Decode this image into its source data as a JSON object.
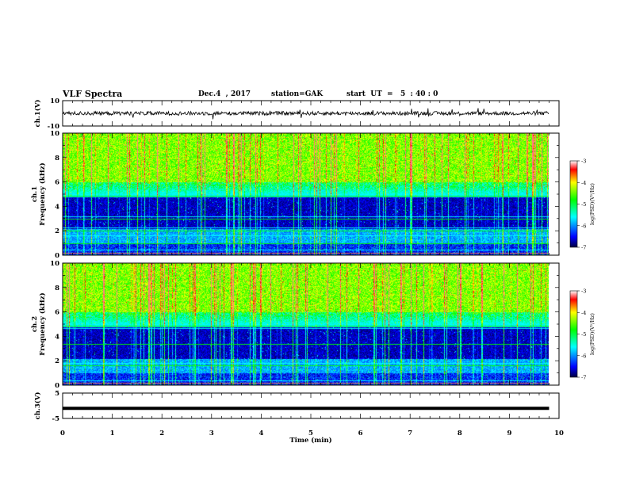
{
  "header": {
    "title": "VLF Spectra",
    "date": "Dec.4  , 2017",
    "station": "station=GAK",
    "start": "start  UT  =   5  : 40 : 0"
  },
  "chart_data": [
    {
      "type": "line",
      "panel": "ch1-waveform",
      "ylabel": "ch.1(V)",
      "ylim": [
        -10,
        10
      ],
      "yticks": [
        "10",
        "-10"
      ],
      "description_series": "noisy waveform around 0 V",
      "xlim": [
        0,
        10
      ]
    },
    {
      "type": "heatmap",
      "panel": "ch1-spectrogram",
      "ylabel": "ch.1\nFrequency  (kHz)",
      "ylim": [
        0,
        10
      ],
      "yticks": [
        "0",
        "2",
        "4",
        "6",
        "8",
        "10"
      ],
      "xlim": [
        0,
        10
      ],
      "data_extent_x": [
        0,
        9.8
      ],
      "colorbar": {
        "label": "log(PSD)(V²/Hz)",
        "range": [
          -7,
          -3
        ],
        "ticks": [
          "-3",
          "-4",
          "-5",
          "-6",
          "-7"
        ]
      },
      "line_features_khz": [
        0.2,
        0.45,
        1.0,
        1.6,
        2.0,
        2.3,
        3.0,
        3.2,
        4.9
      ]
    },
    {
      "type": "heatmap",
      "panel": "ch2-spectrogram",
      "ylabel": "ch.2\nFrequency  (kHz)",
      "ylim": [
        0,
        10
      ],
      "yticks": [
        "0",
        "2",
        "4",
        "6",
        "8",
        "10"
      ],
      "xlim": [
        0,
        10
      ],
      "data_extent_x": [
        0,
        9.8
      ],
      "colorbar": {
        "label": "log(PSD)(V²/Hz)",
        "range": [
          -7,
          -3
        ],
        "ticks": [
          "-3",
          "-4",
          "-5",
          "-6",
          "-7"
        ]
      },
      "line_features_khz": [
        0.2,
        0.4,
        1.6,
        1.8,
        3.4,
        4.7,
        4.9
      ]
    },
    {
      "type": "line",
      "panel": "ch3-waveform",
      "ylabel": "ch.3(V)",
      "ylim": [
        -5,
        5
      ],
      "yticks": [
        "5",
        "-5"
      ],
      "constant_value": -1,
      "xlim": [
        0,
        10
      ]
    }
  ],
  "xaxis": {
    "label": "Time  (min)",
    "ticks": [
      "0",
      "1",
      "2",
      "3",
      "4",
      "5",
      "6",
      "7",
      "8",
      "9",
      "10"
    ]
  },
  "colors": {
    "spectrum_low": "#000040",
    "spectrum_high": "#ff0000",
    "axis": "#000000"
  }
}
